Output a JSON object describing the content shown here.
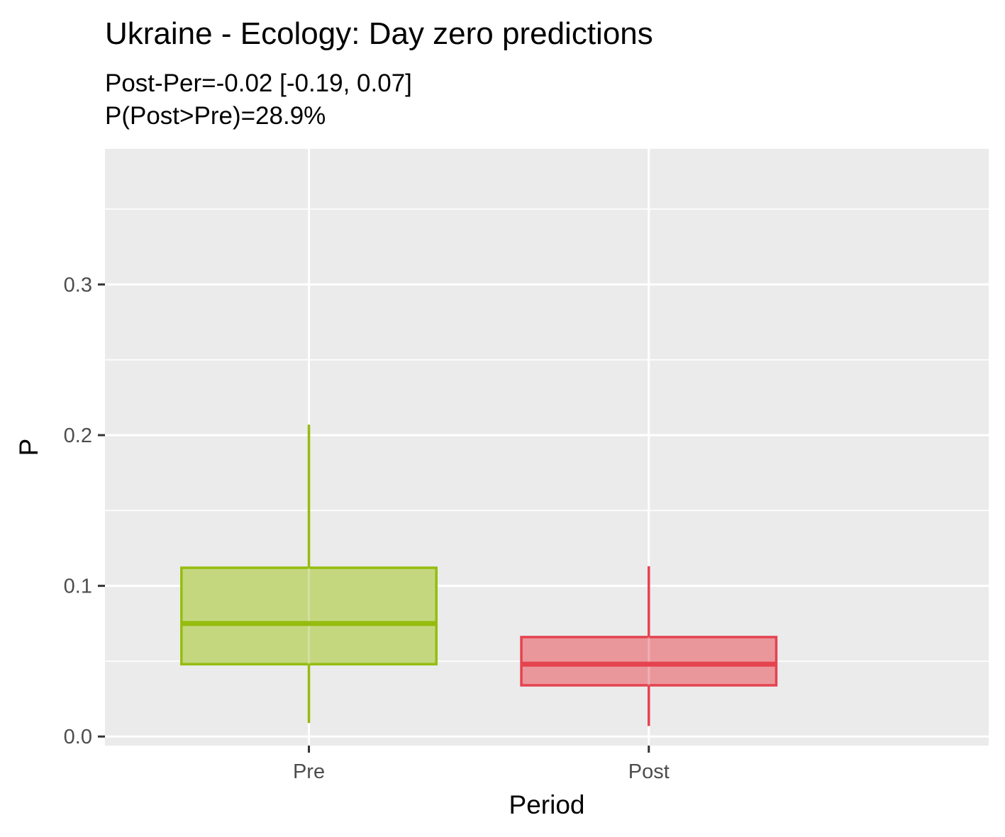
{
  "chart_data": {
    "type": "boxplot",
    "title": "Ukraine - Ecology: Day zero predictions",
    "subtitle_lines": [
      "Post-Per=-0.02 [-0.19, 0.07]",
      "P(Post>Pre)=28.9%"
    ],
    "xlabel": "Period",
    "ylabel": "P",
    "categories": [
      "Pre",
      "Post"
    ],
    "ylim": [
      -0.006,
      0.39
    ],
    "y_ticks": [
      0.0,
      0.1,
      0.2,
      0.3
    ],
    "y_tick_labels": [
      "0.0",
      "0.1",
      "0.2",
      "0.3"
    ],
    "grid": true,
    "legend": "none",
    "boxes": [
      {
        "category": "Pre",
        "whisker_low": 0.009,
        "q1": 0.048,
        "median": 0.075,
        "q3": 0.112,
        "whisker_high": 0.207,
        "color": "#95bc0e",
        "fill": "#c4d77f"
      },
      {
        "category": "Post",
        "whisker_low": 0.007,
        "q1": 0.034,
        "median": 0.048,
        "q3": 0.066,
        "whisker_high": 0.113,
        "color": "#e4434f",
        "fill": "#ea979b"
      }
    ]
  }
}
